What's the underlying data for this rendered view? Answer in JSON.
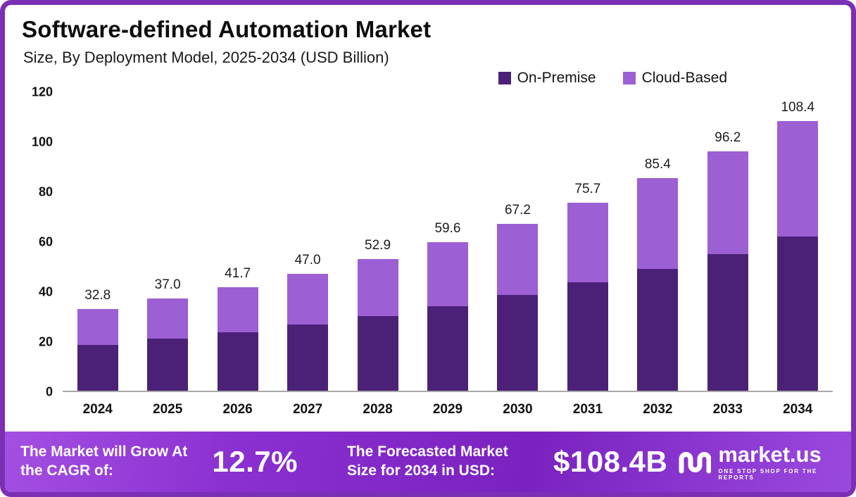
{
  "header": {
    "title": "Software-defined Automation Market",
    "subtitle": "Size, By Deployment Model, 2025-2034 (USD Billion)"
  },
  "chart_data": {
    "type": "bar",
    "stacked": true,
    "title": "Software-defined Automation Market",
    "subtitle": "Size, By Deployment Model, 2025-2034 (USD Billion)",
    "categories": [
      "2024",
      "2025",
      "2026",
      "2027",
      "2028",
      "2029",
      "2030",
      "2031",
      "2032",
      "2033",
      "2034"
    ],
    "series": [
      {
        "name": "On-Premise",
        "color": "#4b2178",
        "values": [
          18.5,
          21.0,
          23.5,
          26.5,
          30.0,
          34.0,
          38.5,
          43.5,
          49.0,
          55.0,
          62.0
        ]
      },
      {
        "name": "Cloud-Based",
        "color": "#9c5fd4",
        "values": [
          14.3,
          16.0,
          18.2,
          20.5,
          22.9,
          25.6,
          28.7,
          32.2,
          36.4,
          41.2,
          46.4
        ]
      }
    ],
    "totals": [
      32.8,
      37.0,
      41.7,
      47.0,
      52.9,
      59.6,
      67.2,
      75.7,
      85.4,
      96.2,
      108.4
    ],
    "ylim": [
      0,
      120
    ],
    "yticks": [
      0,
      20,
      40,
      60,
      80,
      100,
      120
    ],
    "legend_position": "top-right",
    "grid": false,
    "unit": "USD Billion"
  },
  "footer": {
    "cagr_label": "The Market will Grow At the CAGR of:",
    "cagr_value": "12.7%",
    "forecast_label": "The Forecasted Market Size for 2034 in USD:",
    "forecast_value": "$108.4B",
    "brand": "market.us",
    "brand_tagline": "ONE STOP SHOP FOR THE REPORTS"
  },
  "colors": {
    "frame_border": "#7b2fb5",
    "banner_purple": "#8a2fd0",
    "on_premise": "#4b2178",
    "cloud_based": "#9c5fd4"
  }
}
